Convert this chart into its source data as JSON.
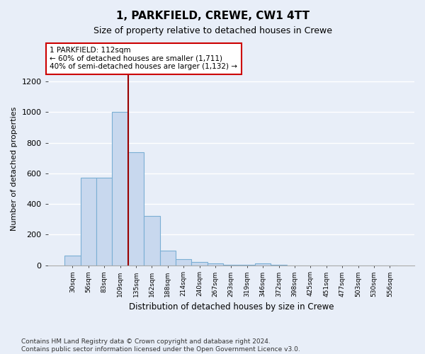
{
  "title": "1, PARKFIELD, CREWE, CW1 4TT",
  "subtitle": "Size of property relative to detached houses in Crewe",
  "xlabel": "Distribution of detached houses by size in Crewe",
  "ylabel": "Number of detached properties",
  "bar_color": "#c8d8ee",
  "bar_edge_color": "#7bafd4",
  "categories": [
    "30sqm",
    "56sqm",
    "83sqm",
    "109sqm",
    "135sqm",
    "162sqm",
    "188sqm",
    "214sqm",
    "240sqm",
    "267sqm",
    "293sqm",
    "319sqm",
    "346sqm",
    "372sqm",
    "398sqm",
    "425sqm",
    "451sqm",
    "477sqm",
    "503sqm",
    "530sqm",
    "556sqm"
  ],
  "values": [
    65,
    570,
    570,
    1000,
    740,
    320,
    95,
    38,
    22,
    12,
    5,
    3,
    12,
    1,
    0,
    0,
    0,
    0,
    0,
    0,
    0
  ],
  "ylim": [
    0,
    1260
  ],
  "yticks": [
    0,
    200,
    400,
    600,
    800,
    1000,
    1200
  ],
  "vline_x": 3.5,
  "vline_color": "#990000",
  "annotation_line1": "1 PARKFIELD: 112sqm",
  "annotation_line2": "← 60% of detached houses are smaller (1,711)",
  "annotation_line3": "40% of semi-detached houses are larger (1,132) →",
  "annotation_box_color": "#ffffff",
  "annotation_box_edge_color": "#cc0000",
  "footer_text": "Contains HM Land Registry data © Crown copyright and database right 2024.\nContains public sector information licensed under the Open Government Licence v3.0.",
  "background_color": "#e8eef8",
  "plot_bg_color": "#e8eef8",
  "grid_color": "#ffffff"
}
